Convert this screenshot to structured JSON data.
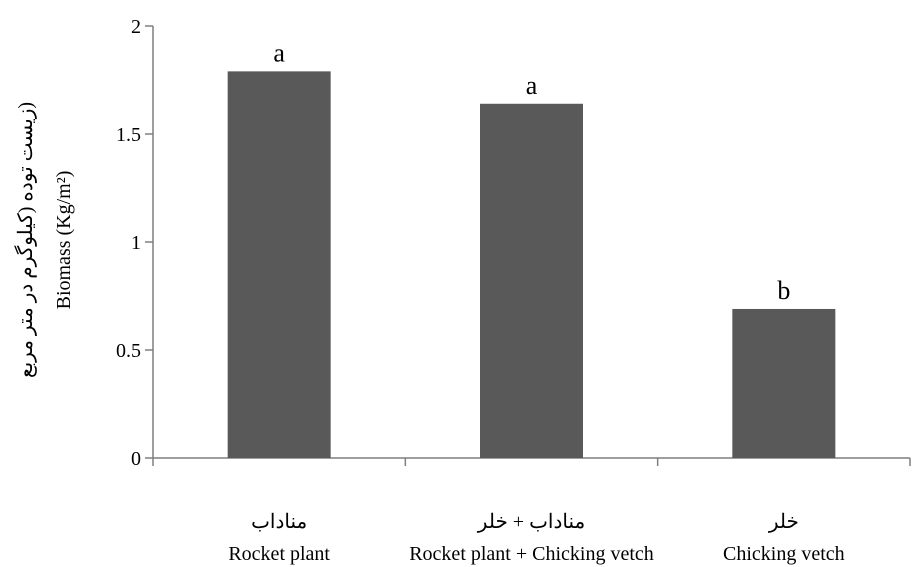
{
  "chart_data": {
    "type": "bar",
    "categories": [
      {
        "fa": "مناداب",
        "en": "Rocket plant"
      },
      {
        "fa": "مناداب + خلر",
        "en": "Rocket plant + Chicking vetch"
      },
      {
        "fa": "خلر",
        "en": "Chicking vetch"
      }
    ],
    "values": [
      1.79,
      1.64,
      0.69
    ],
    "significance_letters": [
      "a",
      "a",
      "b"
    ],
    "yticks": [
      0,
      0.5,
      1,
      1.5,
      2
    ],
    "ytick_labels": [
      "0",
      "0.5",
      "1",
      "1.5",
      "2"
    ],
    "ylim": [
      0,
      2
    ],
    "ylabel_fa": "(زیست توده (کیلوگرم در متر مربع",
    "ylabel_en": "Biomass (Kg/m²)",
    "title": "",
    "xlabel": "",
    "grid": false,
    "bar_color": "#595959",
    "axis_color": "#7f7f7f"
  }
}
